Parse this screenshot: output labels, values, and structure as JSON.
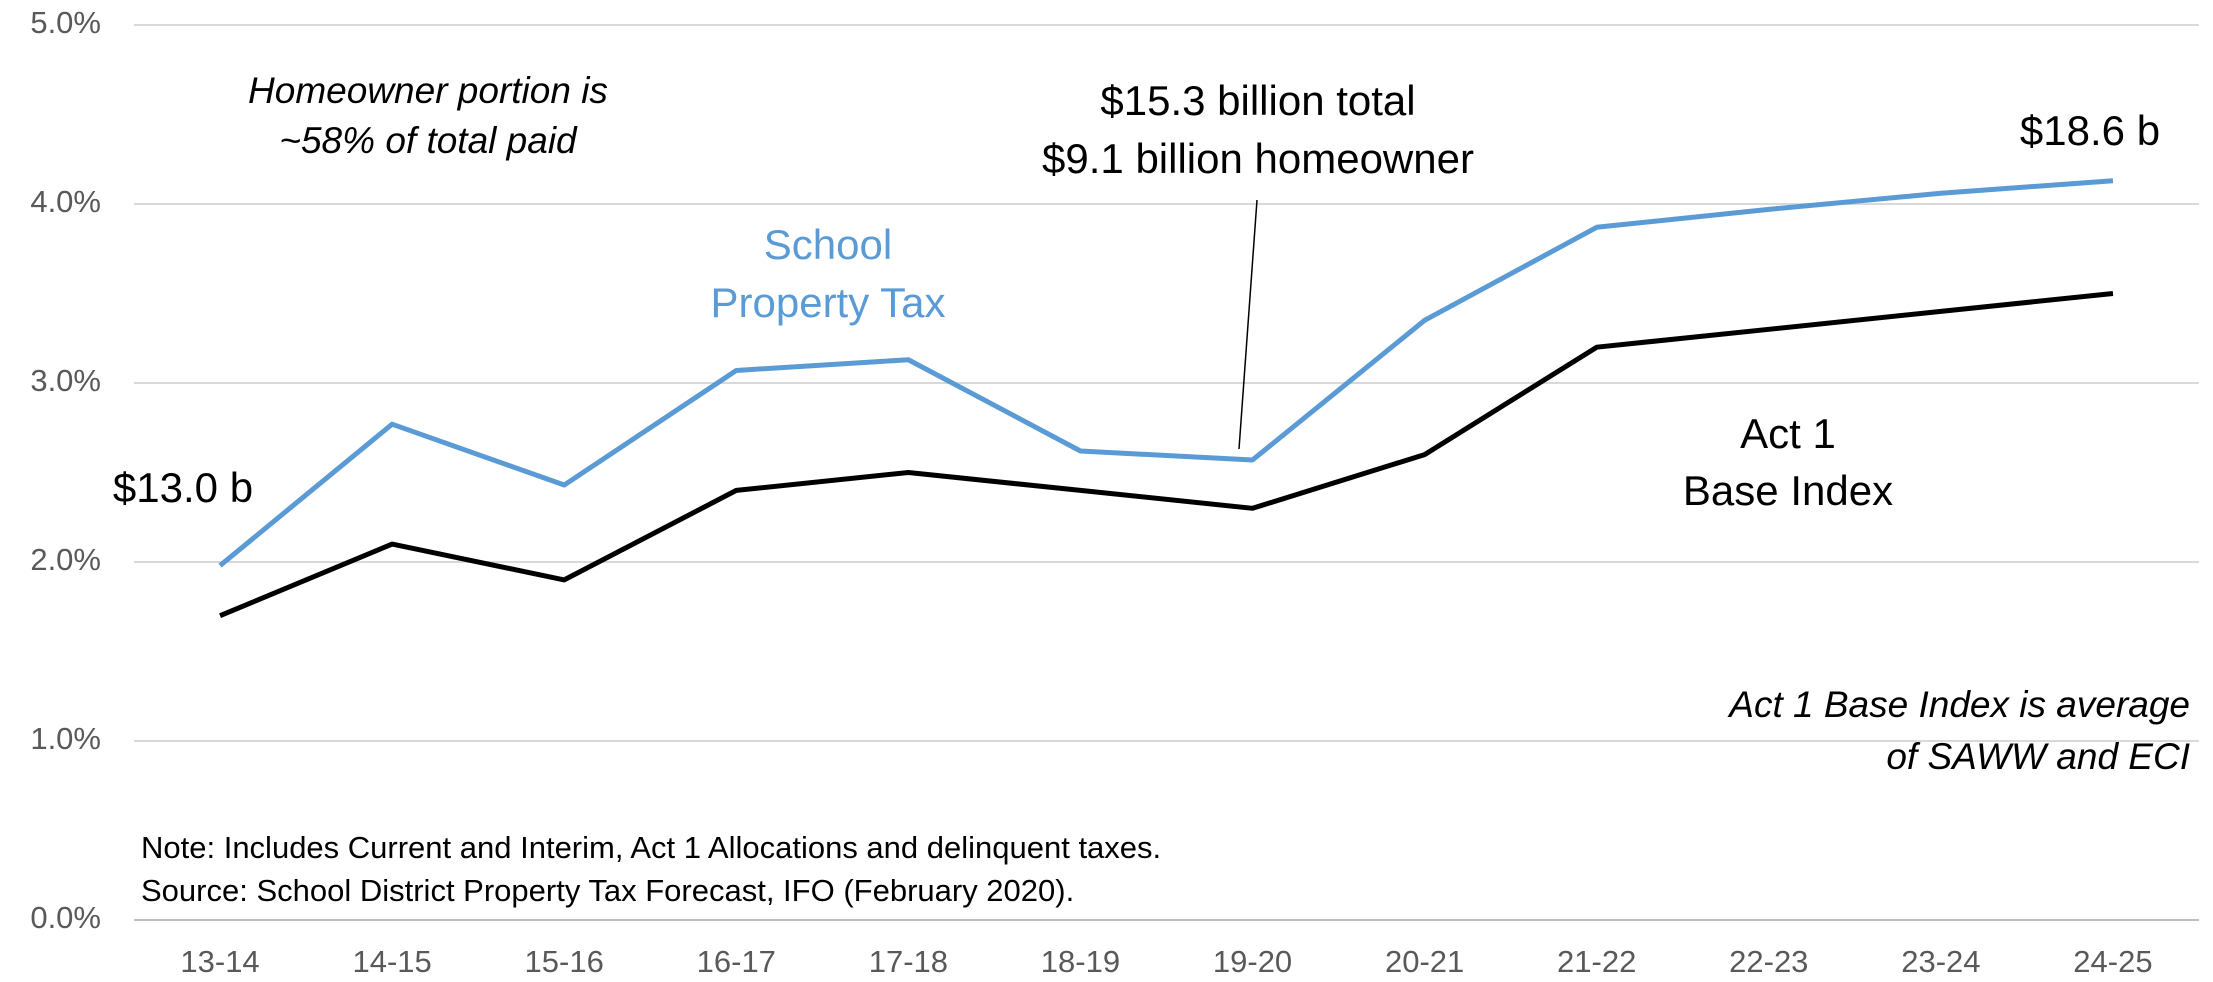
{
  "chart_data": {
    "type": "line",
    "categories": [
      "13-14",
      "14-15",
      "15-16",
      "16-17",
      "17-18",
      "18-19",
      "19-20",
      "20-21",
      "21-22",
      "22-23",
      "23-24",
      "24-25"
    ],
    "series": [
      {
        "label": [
          "School",
          "Property Tax"
        ],
        "color": "#5b9bd5",
        "values": [
          1.98,
          2.77,
          2.43,
          3.07,
          3.13,
          2.62,
          2.57,
          3.35,
          3.87,
          3.97,
          4.06,
          4.13
        ]
      },
      {
        "label": [
          "Act 1",
          "Base Index"
        ],
        "color": "#000000",
        "values": [
          1.7,
          2.1,
          1.9,
          2.4,
          2.5,
          2.4,
          2.3,
          2.6,
          3.2,
          3.3,
          3.4,
          3.5
        ]
      }
    ],
    "ylim": [
      0,
      5
    ],
    "yticks": [
      {
        "value": 0,
        "label": "0.0%"
      },
      {
        "value": 1,
        "label": "1.0%"
      },
      {
        "value": 2,
        "label": "2.0%"
      },
      {
        "value": 3,
        "label": "3.0%"
      },
      {
        "value": 4,
        "label": "4.0%"
      },
      {
        "value": 5,
        "label": "5.0%"
      }
    ],
    "grid": true,
    "annotations": [
      {
        "lines": [
          "$13.0 b"
        ]
      },
      {
        "lines": [
          "Homeowner portion is",
          "~58% of total paid"
        ]
      },
      {
        "lines": [
          "$15.3 billion total",
          "$9.1 billion homeowner"
        ]
      },
      {
        "lines": [
          "$18.6 b"
        ]
      },
      {
        "lines": [
          "Act 1 Base Index is average",
          "of SAWW and ECI"
        ]
      },
      {
        "lines": [
          "Note: Includes Current and Interim, Act 1 Allocations and delinquent taxes.",
          "Source: School District Property Tax Forecast, IFO (February 2020)."
        ]
      }
    ]
  }
}
